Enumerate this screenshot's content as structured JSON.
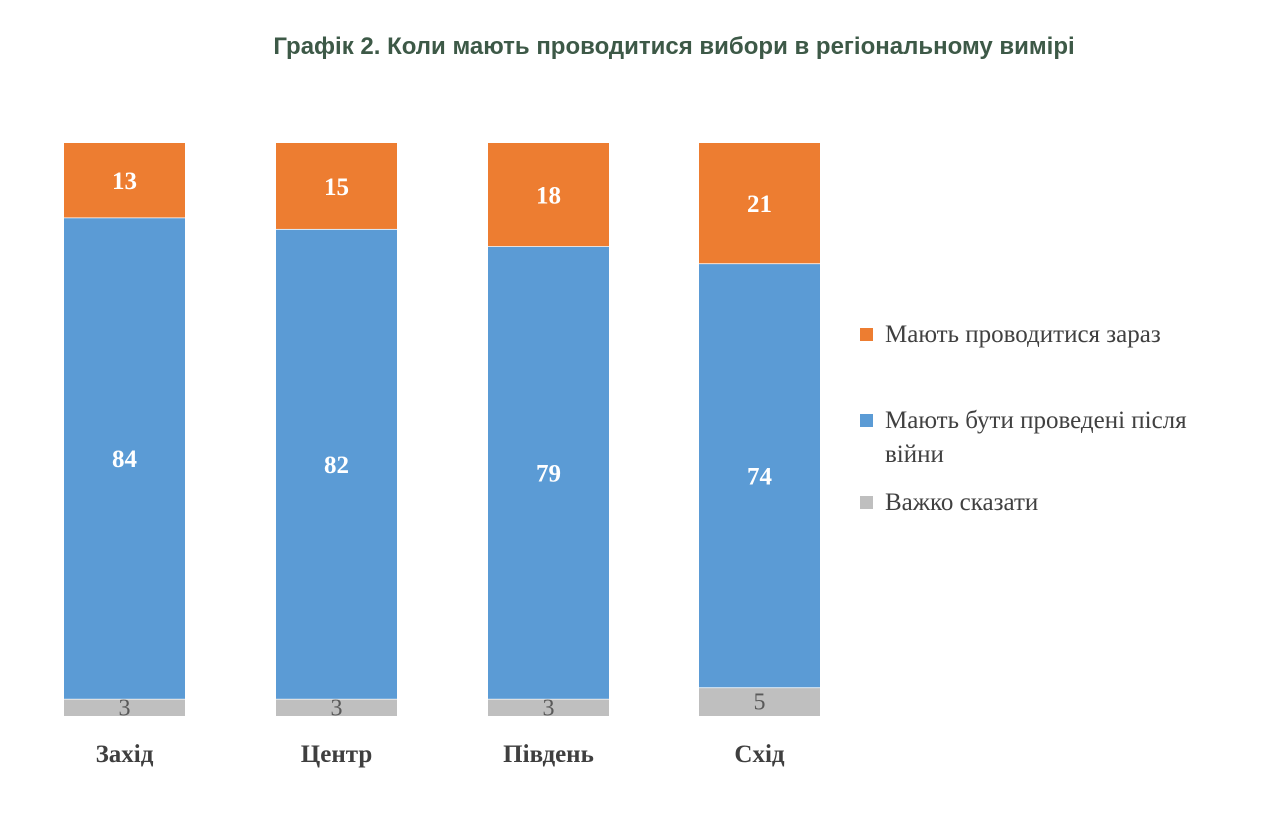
{
  "chart_data": {
    "type": "bar",
    "stacked": true,
    "title": "Графік 2. Коли мають проводитися вибори в регіональному вимірі",
    "categories": [
      "Захід",
      "Центр",
      "Південь",
      "Схід"
    ],
    "series": [
      {
        "name": "Важко сказати",
        "values": [
          3,
          3,
          3,
          5
        ],
        "color": "#bfbfbf",
        "label_color": "#595959"
      },
      {
        "name": "Мають бути проведені після війни",
        "values": [
          84,
          82,
          79,
          74
        ],
        "color": "#5b9bd5",
        "label_color": "#ffffff"
      },
      {
        "name": "Мають проводитися зараз",
        "values": [
          13,
          15,
          18,
          21
        ],
        "color": "#ed7d31",
        "label_color": "#ffffff"
      }
    ],
    "legend_order": [
      2,
      1,
      0
    ],
    "legend_position": "right",
    "ylim": [
      0,
      100
    ],
    "grid": false
  }
}
